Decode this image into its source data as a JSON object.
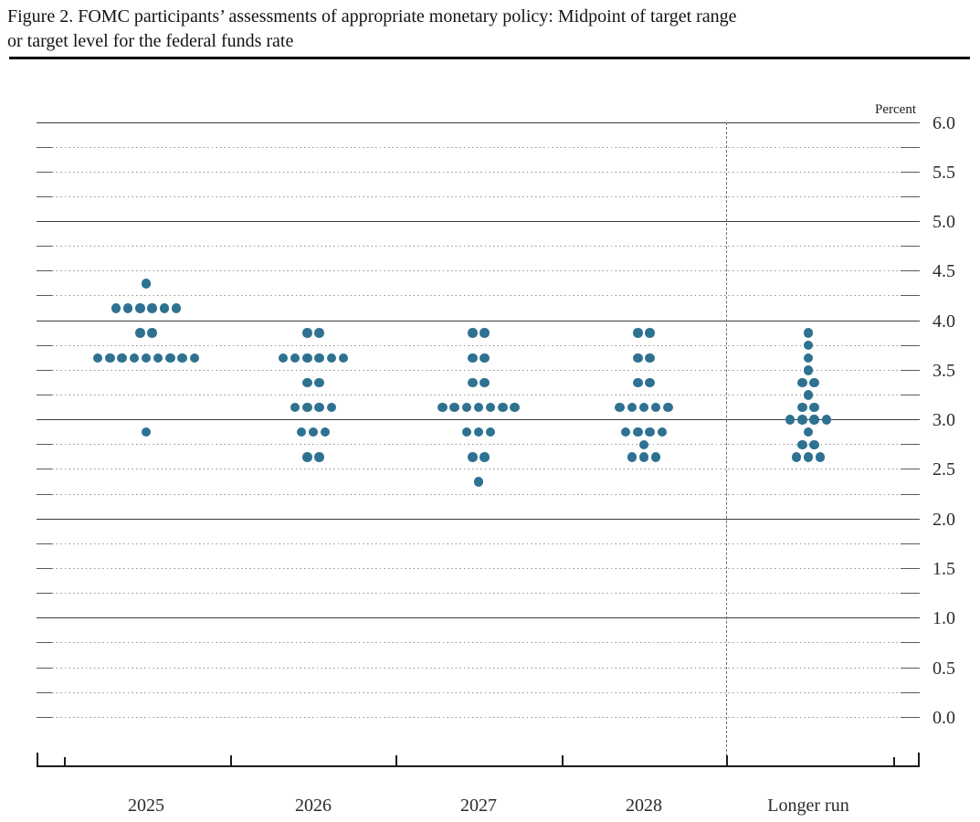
{
  "page": {
    "title_line1": "Figure 2. FOMC participants’ assessments of appropriate monetary policy: Midpoint of target range",
    "title_line2": "or target level for the federal funds rate"
  },
  "chart_data": {
    "type": "scatter",
    "subtype": "fomc-dot-plot",
    "title": "Figure 2. FOMC participants’ assessments of appropriate monetary policy: Midpoint of target range or target level for the federal funds rate",
    "unit_label": "Percent",
    "categories": [
      "2025",
      "2026",
      "2027",
      "2028",
      "Longer run"
    ],
    "ylim": [
      0.0,
      6.0
    ],
    "gridlines": {
      "solid_at": [
        1.0,
        2.0,
        3.0,
        4.0,
        5.0,
        6.0
      ],
      "dotted_step": 0.25,
      "zero_line_style": "dotted",
      "legend_position": "none"
    },
    "y_tick_labels": [
      "6.0",
      "5.5",
      "5.0",
      "4.5",
      "4.0",
      "3.5",
      "3.0",
      "2.5",
      "2.0",
      "1.5",
      "1.0",
      "0.5",
      "0.0"
    ],
    "dot_color": "#2e7191",
    "columns": [
      {
        "category": "2025",
        "dots": [
          {
            "rate": 4.375,
            "count": 1
          },
          {
            "rate": 4.125,
            "count": 6
          },
          {
            "rate": 3.875,
            "count": 2
          },
          {
            "rate": 3.625,
            "count": 9
          },
          {
            "rate": 2.875,
            "count": 1
          }
        ]
      },
      {
        "category": "2026",
        "dots": [
          {
            "rate": 3.875,
            "count": 2
          },
          {
            "rate": 3.625,
            "count": 6
          },
          {
            "rate": 3.375,
            "count": 2
          },
          {
            "rate": 3.125,
            "count": 4
          },
          {
            "rate": 2.875,
            "count": 3
          },
          {
            "rate": 2.625,
            "count": 2
          }
        ]
      },
      {
        "category": "2027",
        "dots": [
          {
            "rate": 3.875,
            "count": 2
          },
          {
            "rate": 3.625,
            "count": 2
          },
          {
            "rate": 3.375,
            "count": 2
          },
          {
            "rate": 3.125,
            "count": 7
          },
          {
            "rate": 2.875,
            "count": 3
          },
          {
            "rate": 2.625,
            "count": 2
          },
          {
            "rate": 2.375,
            "count": 1
          }
        ]
      },
      {
        "category": "2028",
        "dots": [
          {
            "rate": 3.875,
            "count": 2
          },
          {
            "rate": 3.625,
            "count": 2
          },
          {
            "rate": 3.375,
            "count": 2
          },
          {
            "rate": 3.125,
            "count": 5
          },
          {
            "rate": 2.875,
            "count": 4
          },
          {
            "rate": 2.75,
            "count": 1
          },
          {
            "rate": 2.625,
            "count": 3
          }
        ]
      },
      {
        "category": "Longer run",
        "dots": [
          {
            "rate": 3.875,
            "count": 1
          },
          {
            "rate": 3.75,
            "count": 1
          },
          {
            "rate": 3.625,
            "count": 1
          },
          {
            "rate": 3.5,
            "count": 1
          },
          {
            "rate": 3.375,
            "count": 2
          },
          {
            "rate": 3.25,
            "count": 1
          },
          {
            "rate": 3.125,
            "count": 2
          },
          {
            "rate": 3.0,
            "count": 4
          },
          {
            "rate": 2.875,
            "count": 1
          },
          {
            "rate": 2.75,
            "count": 2
          },
          {
            "rate": 2.625,
            "count": 3
          }
        ]
      }
    ]
  }
}
